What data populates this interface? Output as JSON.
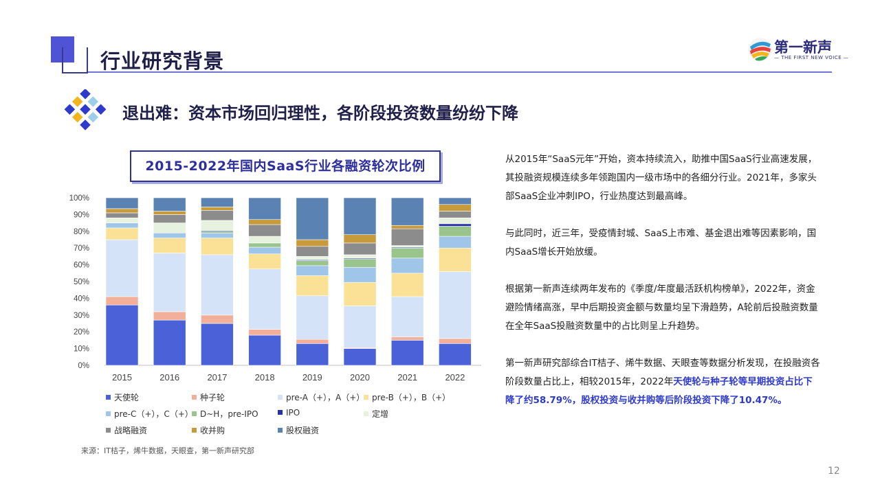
{
  "header": {
    "title": "行业研究背景",
    "logo_name": "第一新声",
    "logo_tagline": "— THE FIRST NEW VOICE —"
  },
  "subtitle": "退出难：资本市场回归理性，各阶段投资数量纷纷下降",
  "chart_data": {
    "type": "bar",
    "stacked": true,
    "title": "2015-2022年国内SaaS行业各融资轮次比例",
    "categories": [
      "2015",
      "2016",
      "2017",
      "2018",
      "2019",
      "2020",
      "2021",
      "2022"
    ],
    "y_tick_labels": [
      "0%",
      "10%",
      "20%",
      "30%",
      "40%",
      "50%",
      "60%",
      "70%",
      "80%",
      "90%",
      "100%"
    ],
    "ylim": [
      0,
      100
    ],
    "grid": false,
    "legend_position": "bottom",
    "series": [
      {
        "name": "天使轮",
        "color": "#4a61d8",
        "values": [
          36,
          27,
          25,
          18,
          13,
          10,
          15,
          13
        ]
      },
      {
        "name": "种子轮",
        "color": "#f2b09a",
        "values": [
          5,
          5,
          5,
          3.5,
          2.5,
          0.5,
          2,
          3
        ]
      },
      {
        "name": "pre-A（+），A（+）",
        "color": "#d4e3f7",
        "values": [
          34,
          35,
          36,
          36,
          26,
          25,
          24,
          40
        ]
      },
      {
        "name": "pre-B（+），B（+）",
        "color": "#fbe196",
        "values": [
          7,
          9,
          10,
          9,
          12,
          14,
          14,
          14
        ]
      },
      {
        "name": "pre-C（+），C（+）",
        "color": "#9fc5e8",
        "values": [
          3,
          3,
          3,
          4,
          6,
          9,
          9,
          7
        ]
      },
      {
        "name": "D~H，pre-IPO",
        "color": "#99c48b",
        "values": [
          0,
          0,
          1,
          2.5,
          3,
          5,
          6,
          6
        ]
      },
      {
        "name": "IPO",
        "color": "#2534a6",
        "values": [
          0,
          0,
          0.5,
          0,
          0.5,
          0.5,
          0.5,
          1.5
        ]
      },
      {
        "name": "定增",
        "color": "#e6f2df",
        "values": [
          3,
          6,
          6,
          4,
          2,
          2,
          1,
          3.5
        ]
      },
      {
        "name": "战略融资",
        "color": "#8c8c8c",
        "values": [
          3,
          5,
          6,
          7,
          6,
          7,
          10,
          4
        ]
      },
      {
        "name": "收并购",
        "color": "#c79a3b",
        "values": [
          2.5,
          2,
          2,
          3,
          4,
          5,
          2,
          4
        ]
      },
      {
        "name": "股权融资",
        "color": "#5a83b3",
        "values": [
          6.5,
          8,
          5.5,
          13,
          25,
          22,
          16.5,
          4
        ]
      }
    ],
    "source": "来源：IT桔子，烯牛数据，天眼查，第一新声研究部"
  },
  "body": {
    "p1": "从2015年“SaaS元年”开始，资本持续流入，助推中国SaaS行业高速发展，其投融资规模连续多年领跑国内一级市场中的各细分行业。2021年，多家头部SaaS企业冲刺IPO，行业热度达到最高峰。",
    "p2": "与此同时，近三年，受疫情封城、SaaS上市难、基金退出难等因素影响，国内SaaS增长开始放缓。",
    "p3": "根据第一新声连续两年发布的《季度/年度最活跃机构榜单》，2022年，资金避险情绪高涨，早中后期投资金额与数量均呈下滑趋势，A轮前后投融资数量在全年SaaS投融资数量中的占比则呈上升趋势。",
    "p4_plain": "第一新声研究部综合IT桔子、烯牛数据、天眼查等数据分析发现，在投融资各阶段数量占比上，相较2015年，2022年",
    "p4_highlight": "天使轮与种子轮等早期投资占比下降了约58.79%，股权投资与收并购等后阶段投资下降了10.47%。"
  },
  "page_number": "12",
  "colors": {
    "accent": "#2d3acb",
    "title": "#1f1f4a"
  }
}
